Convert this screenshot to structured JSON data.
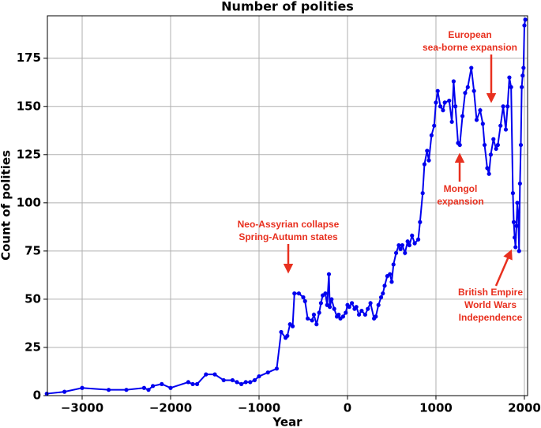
{
  "chart_data": {
    "type": "line",
    "title": "Number of polities",
    "x_label": "Year",
    "y_label": "Count of polities",
    "x": [
      -3400,
      -3200,
      -3000,
      -2700,
      -2500,
      -2300,
      -2250,
      -2200,
      -2100,
      -2000,
      -1800,
      -1750,
      -1700,
      -1600,
      -1500,
      -1400,
      -1300,
      -1250,
      -1200,
      -1150,
      -1100,
      -1050,
      -1000,
      -900,
      -800,
      -750,
      -700,
      -680,
      -650,
      -620,
      -600,
      -550,
      -500,
      -480,
      -450,
      -400,
      -380,
      -350,
      -320,
      -300,
      -280,
      -250,
      -230,
      -210,
      -200,
      -180,
      -150,
      -120,
      -100,
      -80,
      -50,
      -20,
      0,
      20,
      50,
      80,
      100,
      130,
      160,
      200,
      230,
      260,
      300,
      320,
      350,
      380,
      400,
      420,
      450,
      480,
      500,
      520,
      550,
      580,
      600,
      620,
      650,
      680,
      700,
      730,
      760,
      800,
      820,
      850,
      870,
      900,
      920,
      950,
      980,
      1000,
      1020,
      1050,
      1080,
      1100,
      1150,
      1180,
      1200,
      1220,
      1250,
      1270,
      1300,
      1330,
      1360,
      1400,
      1430,
      1460,
      1500,
      1530,
      1550,
      1580,
      1600,
      1620,
      1650,
      1680,
      1700,
      1730,
      1760,
      1790,
      1810,
      1830,
      1850,
      1870,
      1880,
      1890,
      1900,
      1910,
      1920,
      1930,
      1940,
      1950,
      1960,
      1970,
      1980,
      1990,
      2000,
      2010
    ],
    "series": [
      {
        "name": "Number of polities",
        "color": "#0000ee",
        "values": [
          1,
          2,
          4,
          3,
          3,
          4,
          3,
          5,
          6,
          4,
          7,
          6,
          6,
          11,
          11,
          8,
          8,
          7,
          6,
          7,
          7,
          8,
          10,
          12,
          14,
          33,
          30,
          31,
          37,
          36,
          53,
          53,
          51,
          49,
          40,
          39,
          42,
          37,
          43,
          48,
          52,
          53,
          47,
          63,
          46,
          50,
          45,
          41,
          42,
          40,
          41,
          43,
          47,
          46,
          48,
          45,
          46,
          42,
          44,
          42,
          45,
          48,
          40,
          41,
          47,
          51,
          53,
          57,
          62,
          63,
          59,
          68,
          74,
          78,
          76,
          78,
          74,
          80,
          78,
          83,
          79,
          81,
          90,
          105,
          120,
          127,
          122,
          135,
          140,
          152,
          158,
          150,
          148,
          152,
          153,
          142,
          163,
          150,
          131,
          130,
          145,
          157,
          160,
          170,
          158,
          143,
          148,
          141,
          130,
          118,
          115,
          125,
          133,
          128,
          130,
          140,
          150,
          138,
          150,
          165,
          160,
          105,
          90,
          82,
          77,
          88,
          100,
          95,
          75,
          110,
          130,
          160,
          166,
          170,
          192,
          195
        ]
      }
    ],
    "xlim": [
      -3393,
      2036
    ],
    "ylim": [
      0,
      197
    ],
    "xticks": [
      {
        "value": -3000,
        "label": "−3000"
      },
      {
        "value": -2000,
        "label": "−2000"
      },
      {
        "value": -1000,
        "label": "−1000"
      },
      0,
      1000,
      2000
    ],
    "yticks": [
      0,
      25,
      50,
      75,
      100,
      125,
      150,
      175
    ],
    "grid": true,
    "annotations": [
      {
        "lines": [
          "Neo-Assyrian collapse",
          "Spring-Autumn states"
        ]
      },
      {
        "lines": [
          "European",
          "sea-borne expansion"
        ]
      },
      {
        "lines": [
          "Mongol",
          "expansion"
        ]
      },
      {
        "lines": [
          "British Empire",
          "World Wars",
          "Independence"
        ]
      }
    ]
  }
}
